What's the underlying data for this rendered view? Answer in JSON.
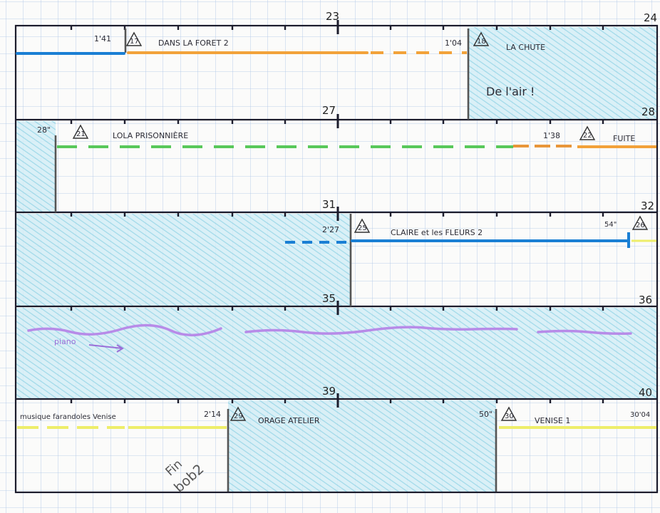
{
  "colors": {
    "paper": "#fbfbfa",
    "grid": "#a9c3e6",
    "frame": "#1c1c2c",
    "hatch": "#8fd3e6",
    "blue": "#1a7fd4",
    "orange": "#f2a23a",
    "green": "#58c85a",
    "yellow": "#eeee6a",
    "purple": "#b78be8"
  },
  "measures": {
    "row1_mid": "23",
    "row1_end": "24",
    "row2_mid": "27",
    "row2_end": "28",
    "row3_mid": "31",
    "row3_end": "32",
    "row4_mid": "35",
    "row4_end": "36",
    "row5_mid": "39",
    "row5_end": "40"
  },
  "cues": {
    "c17": {
      "number": "17",
      "title": "DANS LA FORET 2",
      "time": "1'41"
    },
    "c18": {
      "number": "18",
      "title": "LA CHUTE",
      "time": "1'04",
      "note": "De l'air !"
    },
    "c21": {
      "number": "21",
      "title": "LOLA PRISONNIÈRE",
      "time": "28\""
    },
    "c22": {
      "number": "22",
      "title": "FUITE",
      "time": "1'38"
    },
    "c25": {
      "number": "25",
      "title": "CLAIRE et les FLEURS 2",
      "time": "2'27"
    },
    "c26": {
      "number": "26",
      "time": "54\""
    },
    "piano": {
      "label": "piano"
    },
    "c29": {
      "number": "29",
      "title": "ORAGE ATELIER",
      "time": "2'14",
      "pre_label": "musique farandoles Venise"
    },
    "c30": {
      "number": "30",
      "title": "VENISE 1",
      "time": "50\"",
      "end_time": "30'04"
    },
    "fin": {
      "line1": "Fin",
      "line2": "bob2"
    }
  }
}
